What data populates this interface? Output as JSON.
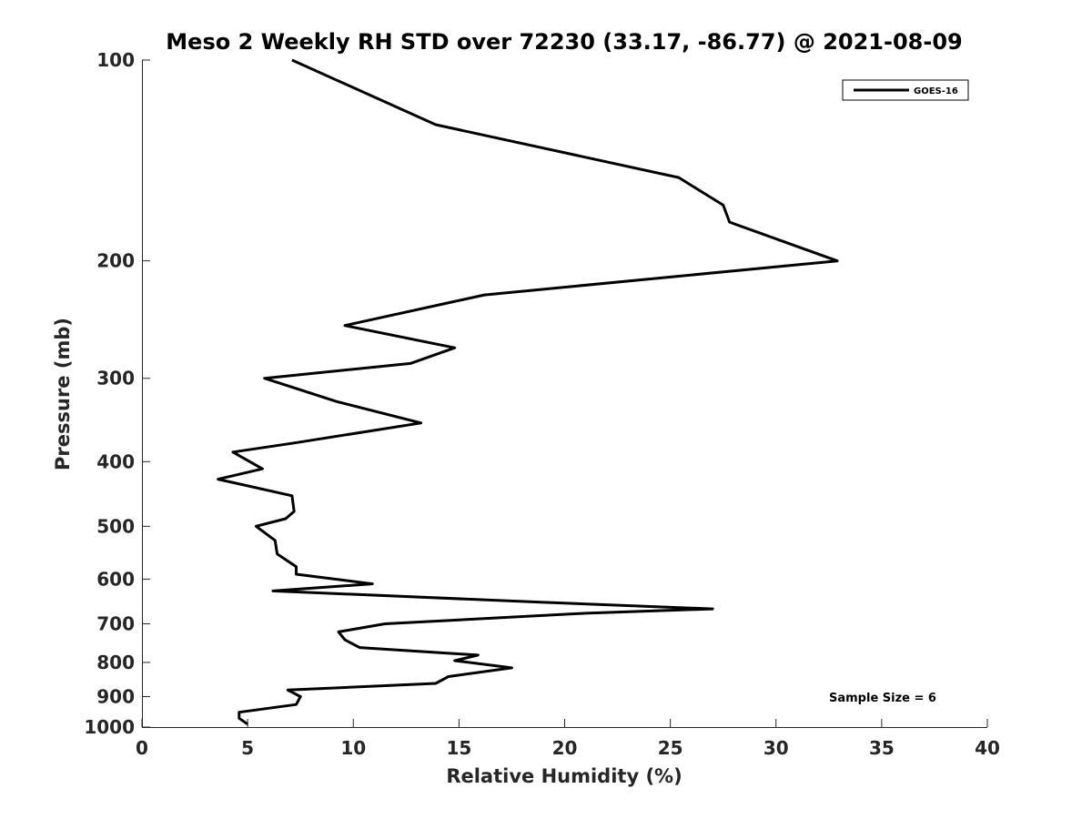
{
  "chart_data": {
    "type": "line",
    "title": "Meso 2 Weekly RH STD over 72230 (33.17, -86.77) @ 2021-08-09",
    "xlabel": "Relative Humidity (%)",
    "ylabel": "Pressure (mb)",
    "xlim": [
      0,
      40
    ],
    "ylim": [
      100,
      1000
    ],
    "y_scale": "log",
    "y_reversed": true,
    "grid": false,
    "xticks": [
      0,
      5,
      10,
      15,
      20,
      25,
      30,
      35,
      40
    ],
    "xtick_labels": [
      "0",
      "5",
      "10",
      "15",
      "20",
      "25",
      "30",
      "35",
      "40"
    ],
    "yticks": [
      100,
      200,
      300,
      400,
      500,
      600,
      700,
      800,
      900,
      1000
    ],
    "ytick_labels": [
      "100",
      "200",
      "300",
      "400",
      "500",
      "600",
      "700",
      "800",
      "900",
      "1000"
    ],
    "legend": {
      "location": "top-right",
      "entries": [
        "GOES-16"
      ]
    },
    "annotation": "Sample Size = 6",
    "series": [
      {
        "name": "GOES-16",
        "color": "#000000",
        "points": [
          [
            7.1,
            100
          ],
          [
            13.9,
            125
          ],
          [
            25.4,
            150
          ],
          [
            27.5,
            165
          ],
          [
            27.8,
            175
          ],
          [
            32.9,
            200
          ],
          [
            16.2,
            225
          ],
          [
            9.6,
            250
          ],
          [
            14.8,
            270
          ],
          [
            12.7,
            285
          ],
          [
            5.8,
            300
          ],
          [
            9.2,
            325
          ],
          [
            13.2,
            350
          ],
          [
            7.2,
            375
          ],
          [
            4.3,
            387
          ],
          [
            5.7,
            410
          ],
          [
            3.6,
            425
          ],
          [
            7.1,
            450
          ],
          [
            7.2,
            475
          ],
          [
            6.8,
            487
          ],
          [
            5.4,
            500
          ],
          [
            6.3,
            525
          ],
          [
            6.4,
            550
          ],
          [
            7.3,
            575
          ],
          [
            7.3,
            590
          ],
          [
            10.9,
            610
          ],
          [
            6.2,
            625
          ],
          [
            19.0,
            650
          ],
          [
            27.0,
            665
          ],
          [
            21.0,
            675
          ],
          [
            11.5,
            700
          ],
          [
            9.3,
            720
          ],
          [
            9.6,
            740
          ],
          [
            10.3,
            760
          ],
          [
            15.9,
            780
          ],
          [
            14.8,
            795
          ],
          [
            17.5,
            815
          ],
          [
            14.5,
            840
          ],
          [
            13.9,
            860
          ],
          [
            6.9,
            880
          ],
          [
            7.5,
            900
          ],
          [
            7.3,
            925
          ],
          [
            4.6,
            950
          ],
          [
            4.6,
            970
          ],
          [
            5.0,
            990
          ]
        ]
      }
    ]
  }
}
